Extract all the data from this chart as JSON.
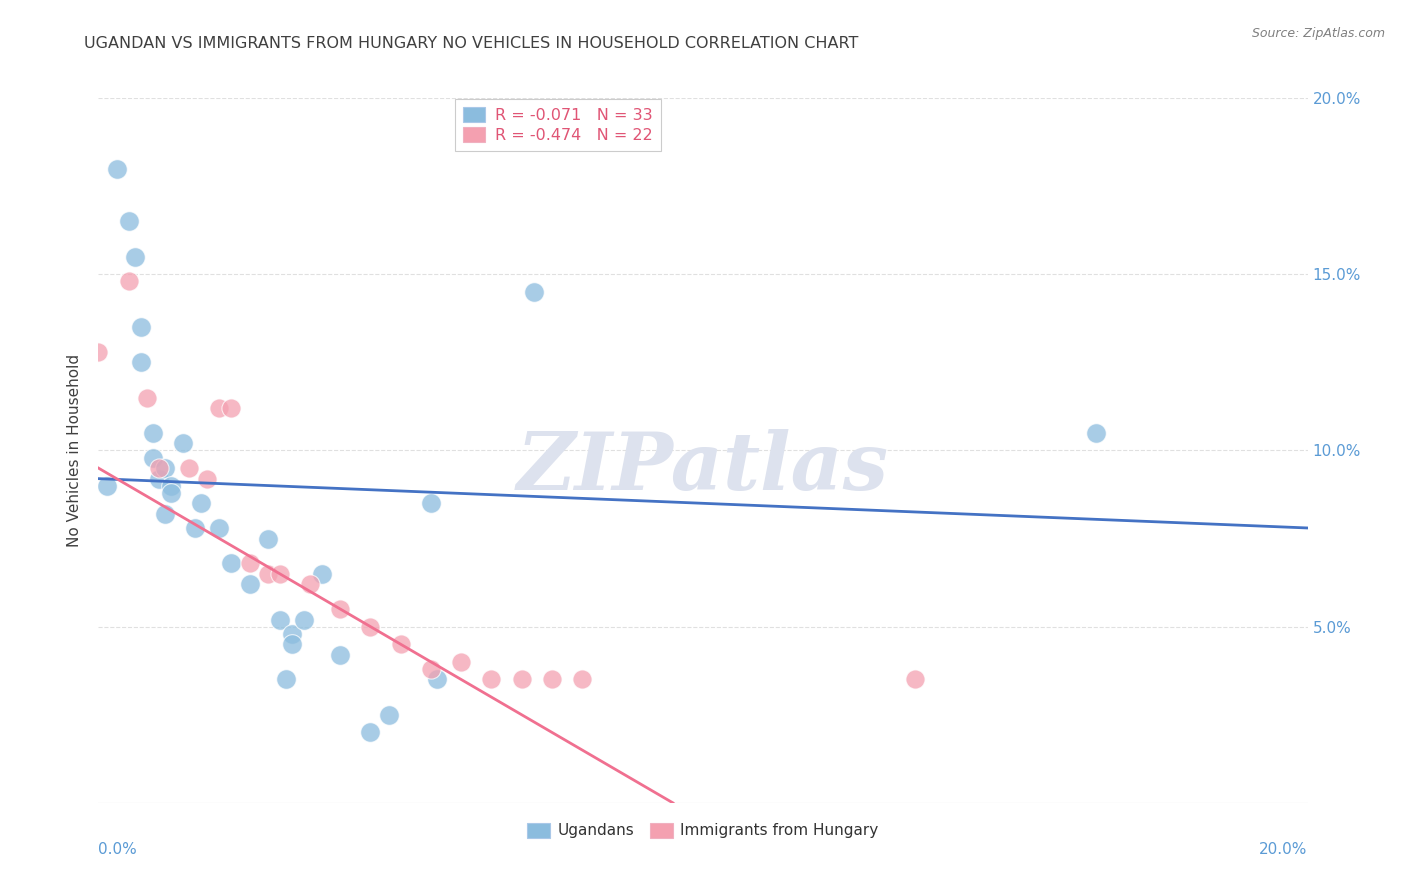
{
  "title": "UGANDAN VS IMMIGRANTS FROM HUNGARY NO VEHICLES IN HOUSEHOLD CORRELATION CHART",
  "source": "Source: ZipAtlas.com",
  "ylabel": "No Vehicles in Household",
  "watermark": "ZIPatlas",
  "ugandan_points": [
    [
      0.15,
      9.0
    ],
    [
      0.3,
      18.0
    ],
    [
      0.5,
      16.5
    ],
    [
      0.6,
      15.5
    ],
    [
      0.7,
      13.5
    ],
    [
      0.7,
      12.5
    ],
    [
      0.9,
      10.5
    ],
    [
      0.9,
      9.8
    ],
    [
      1.0,
      9.2
    ],
    [
      1.1,
      9.5
    ],
    [
      1.2,
      9.0
    ],
    [
      1.2,
      8.8
    ],
    [
      1.4,
      10.2
    ],
    [
      1.7,
      8.5
    ],
    [
      2.0,
      7.8
    ],
    [
      2.2,
      6.8
    ],
    [
      2.5,
      6.2
    ],
    [
      2.8,
      7.5
    ],
    [
      3.0,
      5.2
    ],
    [
      3.2,
      4.8
    ],
    [
      3.4,
      5.2
    ],
    [
      3.7,
      6.5
    ],
    [
      4.0,
      4.2
    ],
    [
      4.5,
      2.0
    ],
    [
      4.8,
      2.5
    ],
    [
      7.2,
      14.5
    ],
    [
      1.1,
      8.2
    ],
    [
      5.5,
      8.5
    ],
    [
      1.6,
      7.8
    ],
    [
      3.1,
      3.5
    ],
    [
      3.2,
      4.5
    ],
    [
      5.6,
      3.5
    ],
    [
      16.5,
      10.5
    ]
  ],
  "hungary_points": [
    [
      0.0,
      12.8
    ],
    [
      0.5,
      14.8
    ],
    [
      0.8,
      11.5
    ],
    [
      1.0,
      9.5
    ],
    [
      1.5,
      9.5
    ],
    [
      1.8,
      9.2
    ],
    [
      2.0,
      11.2
    ],
    [
      2.2,
      11.2
    ],
    [
      2.5,
      6.8
    ],
    [
      2.8,
      6.5
    ],
    [
      3.0,
      6.5
    ],
    [
      3.5,
      6.2
    ],
    [
      4.0,
      5.5
    ],
    [
      4.5,
      5.0
    ],
    [
      5.0,
      4.5
    ],
    [
      5.5,
      3.8
    ],
    [
      6.0,
      4.0
    ],
    [
      6.5,
      3.5
    ],
    [
      7.0,
      3.5
    ],
    [
      7.5,
      3.5
    ],
    [
      8.0,
      3.5
    ],
    [
      13.5,
      3.5
    ]
  ],
  "blue_line": [
    [
      0.0,
      9.2
    ],
    [
      20.0,
      7.8
    ]
  ],
  "pink_line_solid": [
    [
      0.0,
      9.5
    ],
    [
      9.5,
      0.0
    ]
  ],
  "pink_line_dash": [
    [
      9.5,
      0.0
    ],
    [
      13.5,
      -4.0
    ]
  ],
  "background_color": "#ffffff",
  "grid_color": "#e0e0e0",
  "scatter_blue": "#8bbcde",
  "scatter_pink": "#f4a0b0",
  "line_blue": "#4472c4",
  "line_pink": "#f07090",
  "title_color": "#404040",
  "source_color": "#808080",
  "watermark_color": "#dde2ee",
  "right_axis_color": "#5b9bd5",
  "xlim": [
    0,
    20
  ],
  "ylim": [
    0,
    20
  ],
  "ytick_vals": [
    5,
    10,
    15,
    20
  ],
  "ytick_labels": [
    "5.0%",
    "10.0%",
    "15.0%",
    "20.0%"
  ],
  "legend1_blue_text": "R = -0.071   N = 33",
  "legend1_pink_text": "R = -0.474   N = 22",
  "legend2_labels": [
    "Ugandans",
    "Immigrants from Hungary"
  ]
}
